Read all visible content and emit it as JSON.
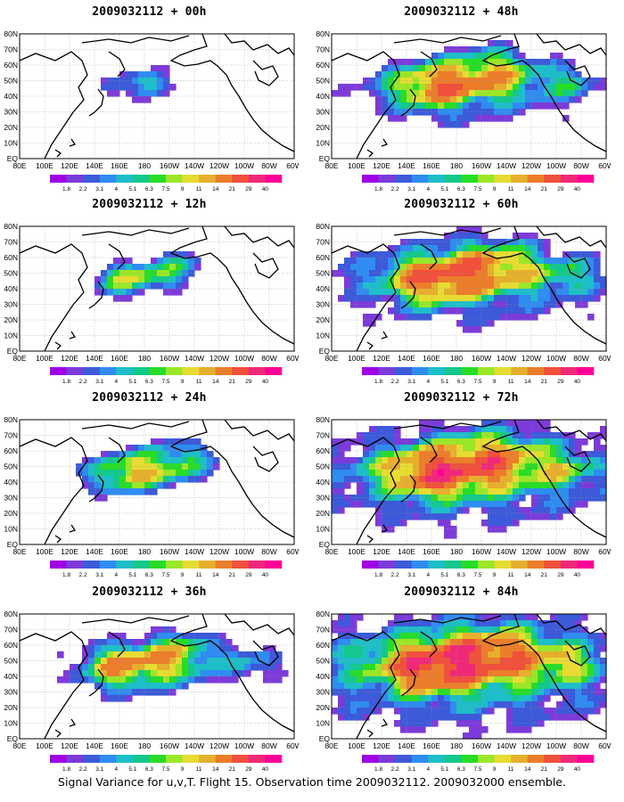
{
  "caption": "Signal Variance for u,v,T. Flight 15. Observation time 2009032112. 2009032000 ensemble.",
  "chart_data": {
    "type": "heatmap",
    "map_region": "North Pacific",
    "lat_ticks": [
      "EQ",
      "10N",
      "20N",
      "30N",
      "40N",
      "50N",
      "60N",
      "70N",
      "80N"
    ],
    "lon_ticks": [
      "80E",
      "100E",
      "120E",
      "140E",
      "160E",
      "180",
      "160W",
      "140W",
      "120W",
      "100W",
      "80W",
      "60W"
    ],
    "colorbar": {
      "labels": [
        "1.8",
        "2.2",
        "3.1",
        "4",
        "5.1",
        "6.3",
        "7.5",
        "9",
        "11",
        "14",
        "21",
        "29",
        "40"
      ],
      "colors": [
        "#a100e6",
        "#7c3bd9",
        "#3c5ad9",
        "#2f8cf0",
        "#1ebec8",
        "#14c88c",
        "#28dc28",
        "#9be628",
        "#e6dc32",
        "#e6af2d",
        "#eb7d2b",
        "#f0503c",
        "#f0287a",
        "#ff0096"
      ]
    },
    "panels": [
      {
        "title": "2009032112 + 00h",
        "lead_hours": 0
      },
      {
        "title": "2009032112 + 48h",
        "lead_hours": 48
      },
      {
        "title": "2009032112 + 12h",
        "lead_hours": 12
      },
      {
        "title": "2009032112 + 60h",
        "lead_hours": 60
      },
      {
        "title": "2009032112 + 24h",
        "lead_hours": 24
      },
      {
        "title": "2009032112 + 72h",
        "lead_hours": 72
      },
      {
        "title": "2009032112 + 36h",
        "lead_hours": 36
      },
      {
        "title": "2009032112 + 84h",
        "lead_hours": 84
      }
    ]
  }
}
